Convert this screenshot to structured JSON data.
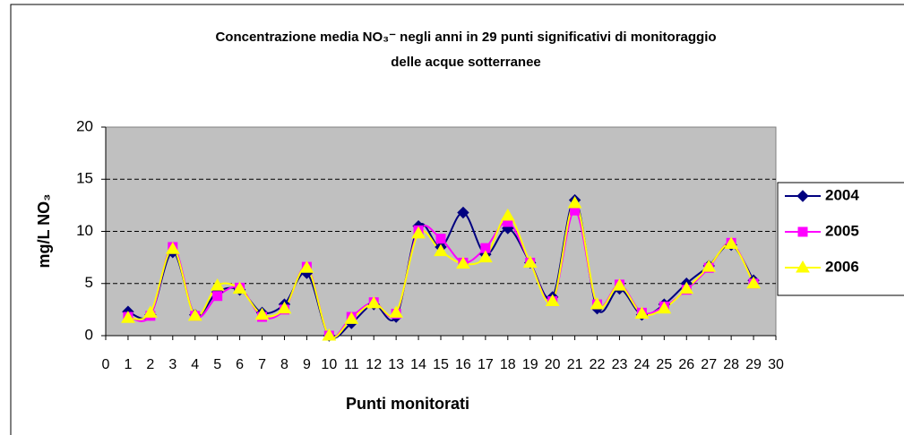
{
  "chart_data": {
    "type": "line",
    "title": [
      "Concentrazione media NO₃⁻ negli anni in 29 punti significativi di monitoraggio",
      "delle acque sotterranee"
    ],
    "x_label": "Punti monitorati",
    "y_label": "mg/L NO₃",
    "x": [
      1,
      2,
      3,
      4,
      5,
      6,
      7,
      8,
      9,
      10,
      11,
      12,
      13,
      14,
      15,
      16,
      17,
      18,
      19,
      20,
      21,
      22,
      23,
      24,
      25,
      26,
      27,
      28,
      29
    ],
    "series": [
      {
        "name": "2004",
        "color": "#000080",
        "marker": "diamond",
        "values": [
          2.3,
          2.0,
          8.0,
          2.0,
          4.2,
          4.4,
          2.2,
          3.0,
          6.0,
          0,
          1.2,
          3.0,
          1.8,
          10.5,
          8.5,
          11.8,
          7.8,
          10.3,
          7.0,
          3.7,
          13.0,
          2.6,
          4.5,
          2.0,
          3.0,
          5.0,
          6.7,
          8.7,
          5.3
        ]
      },
      {
        "name": "2005",
        "color": "#ff00ff",
        "marker": "square",
        "values": [
          1.8,
          1.9,
          8.5,
          1.9,
          3.8,
          4.6,
          1.8,
          2.5,
          6.6,
          0,
          1.8,
          3.2,
          2.1,
          10.1,
          9.3,
          7.0,
          8.4,
          10.9,
          7.0,
          3.3,
          12.0,
          3.0,
          4.9,
          2.2,
          2.8,
          4.4,
          6.5,
          8.9,
          5.0
        ]
      },
      {
        "name": "2006",
        "color": "#ffff00",
        "marker": "triangle",
        "values": [
          1.7,
          2.2,
          8.3,
          1.9,
          4.8,
          4.5,
          2.0,
          2.6,
          6.5,
          0,
          1.6,
          3.1,
          2.2,
          9.8,
          8.1,
          6.9,
          7.5,
          11.5,
          7.0,
          3.3,
          12.7,
          3.0,
          4.8,
          2.1,
          2.6,
          4.5,
          6.6,
          8.8,
          5.0
        ]
      }
    ],
    "xlim": [
      0,
      30
    ],
    "xticks": [
      0,
      1,
      2,
      3,
      4,
      5,
      6,
      7,
      8,
      9,
      10,
      11,
      12,
      13,
      14,
      15,
      16,
      17,
      18,
      19,
      20,
      21,
      22,
      23,
      24,
      25,
      26,
      27,
      28,
      29,
      30
    ],
    "ylim": [
      0,
      20
    ],
    "yticks": [
      0,
      5,
      10,
      15,
      20
    ],
    "grid": true,
    "smooth": true,
    "legend": "right",
    "plot_background": "#c0c0c0"
  }
}
